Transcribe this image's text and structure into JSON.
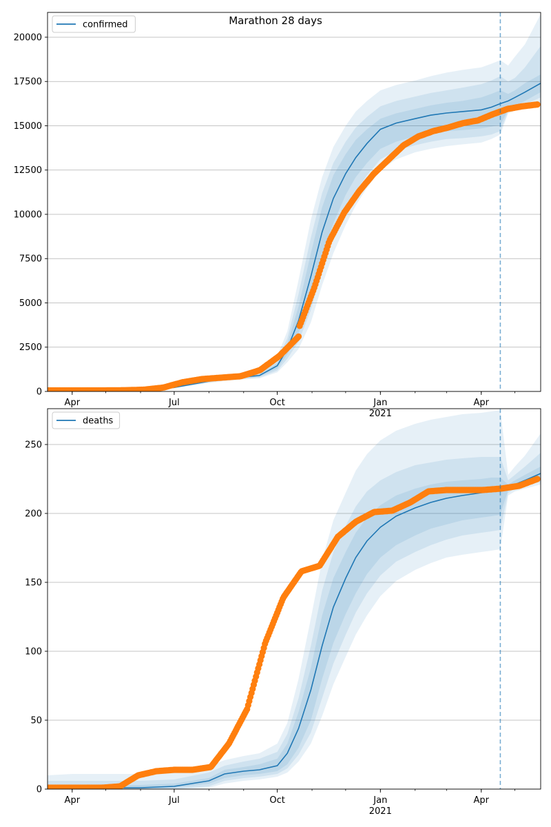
{
  "figure": {
    "title": "Marathon 28 days"
  },
  "colors": {
    "model_line": "#1f77b4",
    "observed": "#ff7f0e",
    "band": "#1f77b4",
    "grid": "#b0b0b0",
    "forecast_marker": "#1f77b4"
  },
  "chart_data": [
    {
      "type": "line",
      "title": "",
      "legend": {
        "entries": [
          "confirmed"
        ],
        "placement": "upper-left"
      },
      "xlabel": "",
      "ylabel": "",
      "xlim": [
        "2020-03-10",
        "2021-05-24"
      ],
      "ylim": [
        0,
        21400
      ],
      "grid": {
        "y": true,
        "x": false
      },
      "y_ticks": [
        0,
        2500,
        5000,
        7500,
        10000,
        12500,
        15000,
        17500,
        20000
      ],
      "x_ticks": [
        {
          "date": "2020-04-01",
          "label": "Apr",
          "sublabel": ""
        },
        {
          "date": "2020-07-01",
          "label": "Jul",
          "sublabel": ""
        },
        {
          "date": "2020-10-01",
          "label": "Oct",
          "sublabel": ""
        },
        {
          "date": "2021-01-01",
          "label": "Jan",
          "sublabel": "2021"
        },
        {
          "date": "2021-04-01",
          "label": "Apr",
          "sublabel": ""
        }
      ],
      "forecast_start": "2021-04-18",
      "model": {
        "name": "confirmed",
        "x": [
          "2020-03-10",
          "2020-04-01",
          "2020-05-01",
          "2020-06-01",
          "2020-07-01",
          "2020-08-01",
          "2020-08-15",
          "2020-09-01",
          "2020-09-15",
          "2020-10-01",
          "2020-10-10",
          "2020-10-20",
          "2020-10-31",
          "2020-11-10",
          "2020-11-20",
          "2020-12-01",
          "2020-12-10",
          "2020-12-20",
          "2021-01-01",
          "2021-01-15",
          "2021-02-01",
          "2021-02-15",
          "2021-03-01",
          "2021-03-15",
          "2021-04-01",
          "2021-04-10",
          "2021-04-18",
          "2021-04-25",
          "2021-05-01",
          "2021-05-10",
          "2021-05-24"
        ],
        "y": [
          60,
          60,
          70,
          100,
          220,
          580,
          720,
          820,
          900,
          1450,
          2400,
          4000,
          6500,
          9000,
          10900,
          12300,
          13200,
          14000,
          14800,
          15150,
          15400,
          15600,
          15720,
          15800,
          15900,
          16050,
          16250,
          16400,
          16600,
          16900,
          17400
        ],
        "bands": [
          {
            "lower": [
              60,
              60,
              70,
              100,
              210,
              540,
              670,
              760,
              840,
              1300,
              2100,
              3300,
              5300,
              7700,
              9500,
              11100,
              12100,
              12900,
              13700,
              14100,
              14400,
              14550,
              14700,
              14750,
              14850,
              14950,
              15050,
              15900,
              16100,
              16400,
              16900
            ],
            "upper": [
              60,
              60,
              70,
              100,
              230,
              620,
              770,
              880,
              970,
              1600,
              2700,
              4800,
              7800,
              10400,
              12200,
              13400,
              14200,
              14800,
              15400,
              15700,
              15950,
              16150,
              16300,
              16400,
              16600,
              16800,
              17000,
              16800,
              17000,
              17400,
              17900
            ]
          },
          {
            "lower": [
              60,
              60,
              70,
              100,
              200,
              510,
              630,
              720,
              790,
              1180,
              1850,
              2800,
              4600,
              6900,
              8700,
              10300,
              11300,
              12200,
              13100,
              13600,
              13900,
              14100,
              14250,
              14300,
              14400,
              14500,
              14700,
              15800,
              16000,
              16200,
              16600
            ],
            "upper": [
              60,
              60,
              70,
              100,
              240,
              660,
              820,
              940,
              1030,
              1800,
              3000,
              5500,
              8700,
              11200,
              12900,
              14100,
              14900,
              15500,
              16100,
              16400,
              16650,
              16850,
              17000,
              17150,
              17350,
              17550,
              17800,
              17500,
              17700,
              18300,
              19500
            ]
          },
          {
            "lower": [
              60,
              60,
              70,
              100,
              190,
              480,
              590,
              680,
              740,
              1080,
              1650,
              2400,
              3900,
              6000,
              7800,
              9400,
              10500,
              11500,
              12500,
              13100,
              13500,
              13700,
              13850,
              13950,
              14050,
              14250,
              14500,
              15700,
              15850,
              16050,
              16300
            ],
            "upper": [
              60,
              60,
              70,
              100,
              250,
              700,
              880,
              1010,
              1120,
              2000,
              3400,
              6300,
              9700,
              12100,
              13800,
              15000,
              15800,
              16400,
              17000,
              17300,
              17550,
              17800,
              18000,
              18150,
              18300,
              18500,
              18700,
              18400,
              18900,
              19600,
              21300
            ]
          }
        ]
      },
      "observed": {
        "segments": [
          {
            "from": "2020-03-10",
            "to": "2020-10-20",
            "y": [
              60,
              60,
              60,
              60,
              70,
              100,
              220,
              520,
              700,
              780,
              860,
              1200,
              2000,
              3100
            ]
          },
          {
            "from": "2020-10-21",
            "to": "2021-05-21",
            "y": [
              3700,
              5900,
              8500,
              10100,
              11300,
              12300,
              13100,
              13900,
              14400,
              14700,
              14900,
              15150,
              15300,
              15650,
              15950,
              16100,
              16200
            ]
          }
        ]
      }
    },
    {
      "type": "line",
      "title": "",
      "legend": {
        "entries": [
          "deaths"
        ],
        "placement": "upper-left"
      },
      "xlabel": "",
      "ylabel": "",
      "xlim": [
        "2020-03-10",
        "2021-05-24"
      ],
      "ylim": [
        0,
        276
      ],
      "grid": {
        "y": true,
        "x": false
      },
      "y_ticks": [
        0,
        50,
        100,
        150,
        200,
        250
      ],
      "x_ticks": [
        {
          "date": "2020-04-01",
          "label": "Apr",
          "sublabel": ""
        },
        {
          "date": "2020-07-01",
          "label": "Jul",
          "sublabel": ""
        },
        {
          "date": "2020-10-01",
          "label": "Oct",
          "sublabel": ""
        },
        {
          "date": "2021-01-01",
          "label": "Jan",
          "sublabel": "2021"
        },
        {
          "date": "2021-04-01",
          "label": "Apr",
          "sublabel": ""
        }
      ],
      "forecast_start": "2021-04-18",
      "model": {
        "name": "deaths",
        "x": [
          "2020-03-10",
          "2020-04-01",
          "2020-05-01",
          "2020-06-01",
          "2020-07-01",
          "2020-08-01",
          "2020-08-15",
          "2020-09-01",
          "2020-09-15",
          "2020-10-01",
          "2020-10-10",
          "2020-10-20",
          "2020-10-31",
          "2020-11-10",
          "2020-11-20",
          "2020-12-01",
          "2020-12-10",
          "2020-12-20",
          "2021-01-01",
          "2021-01-15",
          "2021-02-01",
          "2021-02-15",
          "2021-03-01",
          "2021-03-15",
          "2021-04-01",
          "2021-04-10",
          "2021-04-18",
          "2021-04-25",
          "2021-05-01",
          "2021-05-10",
          "2021-05-24"
        ],
        "y": [
          1,
          1,
          1,
          1,
          2,
          6,
          11,
          13,
          14,
          17,
          26,
          44,
          72,
          104,
          132,
          153,
          168,
          180,
          190,
          198,
          204,
          208,
          211,
          213,
          215,
          216,
          217,
          219,
          221,
          224,
          229
        ],
        "bands": [
          {
            "lower": [
              0,
              0,
              0,
              0,
              1,
              4,
              8,
              10,
              11,
              13,
              18,
              30,
              50,
              80,
              106,
              127,
              142,
              156,
              168,
              177,
              184,
              189,
              192,
              195,
              197,
              198,
              199,
              217,
              219,
              221,
              225
            ],
            "upper": [
              3,
              3,
              3,
              3,
              4,
              8,
              14,
              16,
              18,
              22,
              33,
              56,
              88,
              126,
              153,
              172,
              186,
              197,
              206,
              213,
              218,
              221,
              223,
              224,
              225,
              226,
              226,
              221,
              224,
              228,
              234
            ]
          },
          {
            "lower": [
              0,
              0,
              0,
              0,
              0,
              2,
              6,
              8,
              9,
              11,
              15,
              25,
              41,
              66,
              91,
              112,
              128,
              142,
              155,
              165,
              172,
              177,
              181,
              184,
              186,
              187,
              188,
              215,
              218,
              220,
              223
            ],
            "upper": [
              6,
              6,
              6,
              6,
              7,
              12,
              17,
              20,
              22,
              27,
              40,
              66,
              104,
              144,
              172,
              191,
              205,
              216,
              224,
              230,
              235,
              237,
              239,
              240,
              241,
              241,
              241,
              224,
              228,
              234,
              244
            ]
          },
          {
            "lower": [
              0,
              0,
              0,
              0,
              0,
              1,
              4,
              6,
              7,
              9,
              12,
              20,
              33,
              53,
              76,
              96,
              112,
              126,
              140,
              151,
              159,
              164,
              168,
              170,
              172,
              173,
              174,
              213,
              216,
              218,
              221
            ],
            "upper": [
              10,
              11,
              11,
              11,
              12,
              17,
              21,
              24,
              26,
              33,
              48,
              80,
              124,
              166,
              195,
              215,
              231,
              243,
              253,
              260,
              265,
              268,
              270,
              272,
              273,
              274,
              275,
              228,
              234,
              242,
              258
            ]
          }
        ]
      },
      "observed": {
        "segments": [
          {
            "from": "2020-03-10",
            "to": "2021-05-21",
            "y": [
              1,
              1,
              1,
              1,
              2,
              10,
              13,
              14,
              14,
              16,
              33,
              58,
              106,
              139,
              158,
              162,
              183,
              194,
              201,
              202,
              208,
              216,
              217,
              217,
              217,
              218,
              220,
              225
            ]
          }
        ]
      }
    }
  ]
}
